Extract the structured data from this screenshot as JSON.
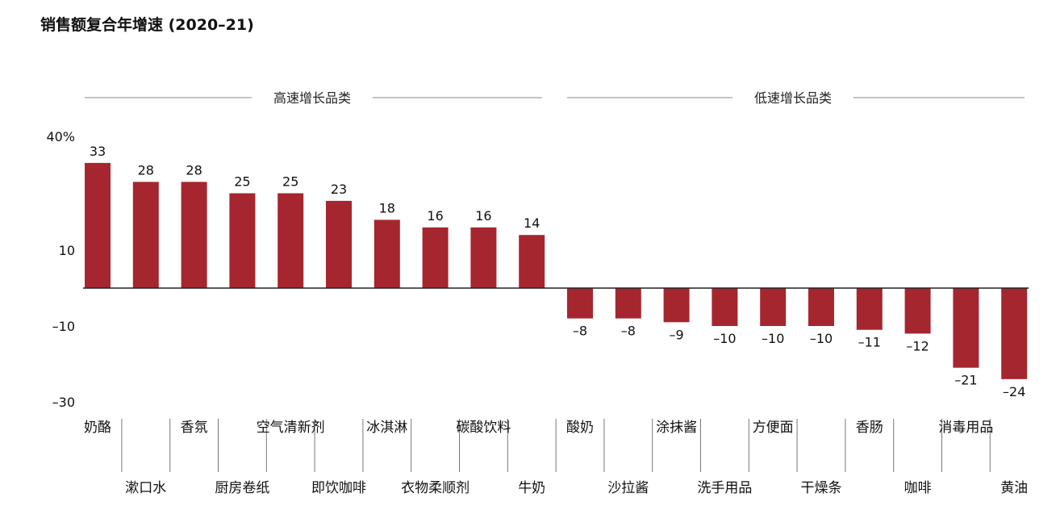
{
  "title": "销售额复合年增速 (2020–21)",
  "colors": {
    "bar": "#A5262F",
    "axis": "#222222",
    "rule": "#888888"
  },
  "groups": {
    "high": "高速增长品类",
    "low": "低速增长品类"
  },
  "chart_data": {
    "type": "bar",
    "title": "销售额复合年增速 (2020–21)",
    "categories": [
      "奶酪",
      "漱口水",
      "香氛",
      "厨房卷纸",
      "空气清新剂",
      "即饮咖啡",
      "冰淇淋",
      "衣物柔顺剂",
      "碳酸饮料",
      "牛奶",
      "酸奶",
      "沙拉酱",
      "涂抹酱",
      "洗手用品",
      "方便面",
      "干燥条",
      "香肠",
      "咖啡",
      "消毒用品",
      "黄油"
    ],
    "values": [
      33,
      28,
      28,
      25,
      25,
      23,
      18,
      16,
      16,
      14,
      -8,
      -8,
      -9,
      -10,
      -10,
      -10,
      -11,
      -12,
      -21,
      -24
    ],
    "value_labels": [
      "33",
      "28",
      "28",
      "25",
      "25",
      "23",
      "18",
      "16",
      "16",
      "14",
      "–8",
      "–8",
      "–9",
      "–10",
      "–10",
      "–10",
      "–11",
      "–12",
      "–21",
      "–24"
    ],
    "yticks": [
      {
        "value": 40,
        "label": "40%"
      },
      {
        "value": 10,
        "label": "10"
      },
      {
        "value": -10,
        "label": "–10"
      },
      {
        "value": -30,
        "label": "–30"
      }
    ],
    "ylim": [
      -30,
      40
    ],
    "xlabel": "",
    "ylabel": "",
    "grid": false,
    "legend": "none"
  }
}
